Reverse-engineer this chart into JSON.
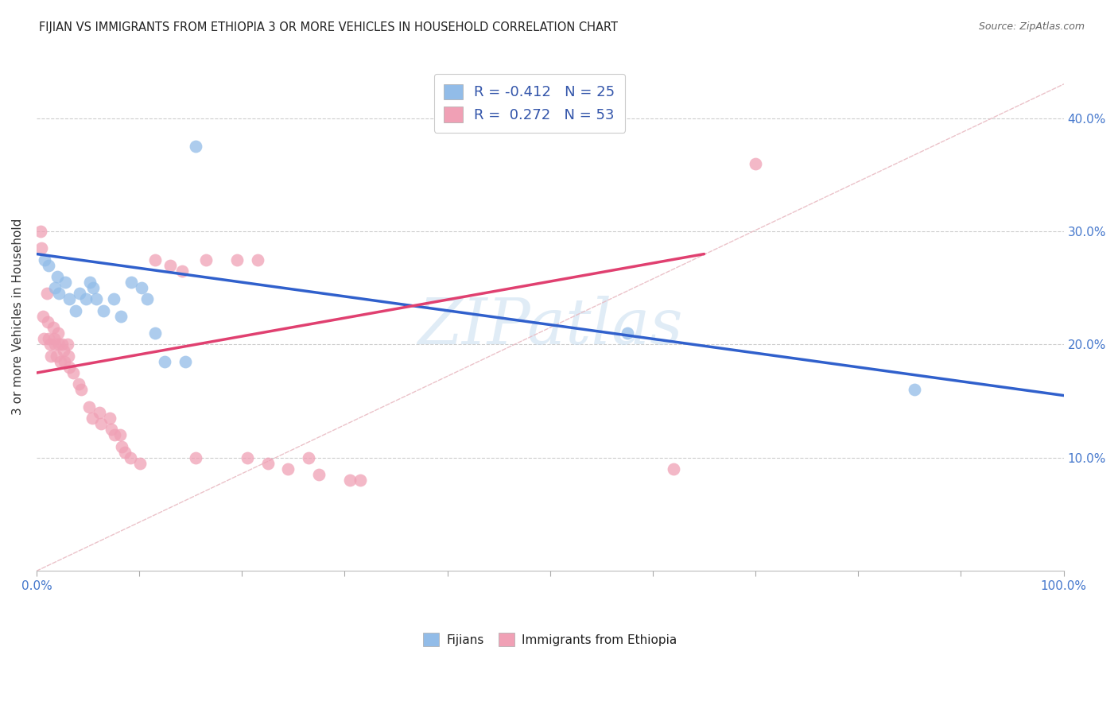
{
  "title": "FIJIAN VS IMMIGRANTS FROM ETHIOPIA 3 OR MORE VEHICLES IN HOUSEHOLD CORRELATION CHART",
  "source": "Source: ZipAtlas.com",
  "ylabel": "3 or more Vehicles in Household",
  "xlim": [
    0,
    1.0
  ],
  "ylim": [
    0,
    0.45
  ],
  "xticks": [
    0.0,
    0.1,
    0.2,
    0.3,
    0.4,
    0.5,
    0.6,
    0.7,
    0.8,
    0.9,
    1.0
  ],
  "yticks": [
    0.0,
    0.1,
    0.2,
    0.3,
    0.4
  ],
  "yticklabels_right": [
    "",
    "10.0%",
    "20.0%",
    "30.0%",
    "40.0%"
  ],
  "legend_r_blue": "-0.412",
  "legend_n_blue": "25",
  "legend_r_pink": "0.272",
  "legend_n_pink": "53",
  "watermark": "ZIPatlas",
  "blue_color": "#92BCE8",
  "pink_color": "#F0A0B5",
  "blue_line_color": "#3060CC",
  "pink_line_color": "#E04070",
  "diag_line_color": "#E8B8C0",
  "fijian_points_x": [
    0.008,
    0.012,
    0.018,
    0.022,
    0.02,
    0.028,
    0.032,
    0.038,
    0.042,
    0.048,
    0.052,
    0.055,
    0.058,
    0.065,
    0.075,
    0.082,
    0.092,
    0.102,
    0.108,
    0.115,
    0.125,
    0.145,
    0.155,
    0.575,
    0.855
  ],
  "fijian_points_y": [
    0.275,
    0.27,
    0.25,
    0.245,
    0.26,
    0.255,
    0.24,
    0.23,
    0.245,
    0.24,
    0.255,
    0.25,
    0.24,
    0.23,
    0.24,
    0.225,
    0.255,
    0.25,
    0.24,
    0.21,
    0.185,
    0.185,
    0.375,
    0.21,
    0.16
  ],
  "ethiopia_points_x": [
    0.004,
    0.005,
    0.006,
    0.007,
    0.01,
    0.011,
    0.012,
    0.013,
    0.014,
    0.016,
    0.017,
    0.018,
    0.019,
    0.021,
    0.022,
    0.023,
    0.025,
    0.026,
    0.027,
    0.03,
    0.031,
    0.032,
    0.036,
    0.041,
    0.043,
    0.051,
    0.054,
    0.061,
    0.063,
    0.071,
    0.073,
    0.076,
    0.081,
    0.083,
    0.086,
    0.091,
    0.101,
    0.115,
    0.13,
    0.142,
    0.155,
    0.165,
    0.195,
    0.205,
    0.215,
    0.225,
    0.245,
    0.265,
    0.275,
    0.305,
    0.315,
    0.62,
    0.7
  ],
  "ethiopia_points_y": [
    0.3,
    0.285,
    0.225,
    0.205,
    0.245,
    0.22,
    0.205,
    0.2,
    0.19,
    0.215,
    0.205,
    0.2,
    0.19,
    0.21,
    0.2,
    0.185,
    0.2,
    0.195,
    0.185,
    0.2,
    0.19,
    0.18,
    0.175,
    0.165,
    0.16,
    0.145,
    0.135,
    0.14,
    0.13,
    0.135,
    0.125,
    0.12,
    0.12,
    0.11,
    0.105,
    0.1,
    0.095,
    0.275,
    0.27,
    0.265,
    0.1,
    0.275,
    0.275,
    0.1,
    0.275,
    0.095,
    0.09,
    0.1,
    0.085,
    0.08,
    0.08,
    0.09,
    0.36
  ],
  "blue_trend_x0": 0.0,
  "blue_trend_x1": 1.0,
  "blue_trend_y0": 0.28,
  "blue_trend_y1": 0.155,
  "pink_trend_x0": 0.0,
  "pink_trend_x1": 0.65,
  "pink_trend_y0": 0.175,
  "pink_trend_y1": 0.28
}
